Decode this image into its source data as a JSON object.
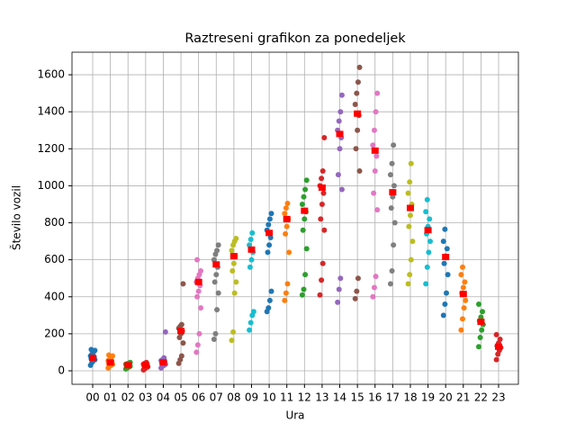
{
  "chart_data": {
    "type": "strip",
    "title": "Raztreseni grafikon za ponedeljek",
    "xlabel": "Ura",
    "ylabel": "Število vozil",
    "categories": [
      "00",
      "01",
      "02",
      "03",
      "04",
      "05",
      "06",
      "07",
      "08",
      "09",
      "10",
      "11",
      "12",
      "13",
      "14",
      "15",
      "16",
      "17",
      "18",
      "19",
      "20",
      "21",
      "22",
      "23"
    ],
    "groups": [
      {
        "color": "#1f77b4",
        "values": [
          30,
          45,
          55,
          60,
          65,
          70,
          75,
          80,
          90,
          100,
          110,
          115
        ]
      },
      {
        "color": "#ff7f0e",
        "values": [
          15,
          25,
          30,
          35,
          40,
          45,
          50,
          55,
          60,
          70,
          80,
          85
        ]
      },
      {
        "color": "#2ca02c",
        "values": [
          10,
          15,
          20,
          25,
          28,
          30,
          32,
          35,
          38,
          40,
          45
        ]
      },
      {
        "color": "#d62728",
        "values": [
          5,
          12,
          18,
          22,
          26,
          30,
          33,
          36,
          40,
          45
        ]
      },
      {
        "color": "#9467bd",
        "values": [
          15,
          25,
          30,
          35,
          40,
          45,
          50,
          55,
          60,
          70,
          210
        ]
      },
      {
        "color": "#8c564b",
        "values": [
          40,
          60,
          80,
          150,
          180,
          200,
          215,
          230,
          240,
          250,
          470
        ]
      },
      {
        "color": "#e377c2",
        "values": [
          100,
          140,
          200,
          340,
          400,
          430,
          460,
          480,
          500,
          520,
          540,
          600
        ]
      },
      {
        "color": "#7f7f7f",
        "values": [
          170,
          200,
          330,
          420,
          480,
          520,
          560,
          600,
          630,
          650,
          680
        ]
      },
      {
        "color": "#bcbd22",
        "values": [
          165,
          210,
          420,
          480,
          540,
          580,
          620,
          650,
          680,
          700,
          715
        ]
      },
      {
        "color": "#17becf",
        "values": [
          220,
          260,
          300,
          320,
          560,
          600,
          640,
          680,
          710,
          745
        ]
      },
      {
        "color": "#1f77b4",
        "values": [
          320,
          340,
          380,
          430,
          640,
          680,
          720,
          760,
          790,
          820,
          850
        ]
      },
      {
        "color": "#ff7f0e",
        "values": [
          380,
          420,
          470,
          640,
          740,
          780,
          820,
          850,
          880,
          905
        ]
      },
      {
        "color": "#2ca02c",
        "values": [
          410,
          440,
          520,
          660,
          760,
          820,
          860,
          900,
          940,
          980,
          1030
        ]
      },
      {
        "color": "#d62728",
        "values": [
          410,
          490,
          580,
          760,
          820,
          900,
          960,
          1000,
          1040,
          1080,
          1260
        ]
      },
      {
        "color": "#9467bd",
        "values": [
          370,
          440,
          500,
          980,
          1060,
          1200,
          1260,
          1300,
          1350,
          1400,
          1490
        ]
      },
      {
        "color": "#8c564b",
        "values": [
          390,
          430,
          500,
          1080,
          1200,
          1300,
          1380,
          1440,
          1500,
          1560,
          1640
        ]
      },
      {
        "color": "#e377c2",
        "values": [
          400,
          450,
          510,
          870,
          960,
          1080,
          1160,
          1220,
          1300,
          1400,
          1500
        ]
      },
      {
        "color": "#7f7f7f",
        "values": [
          470,
          540,
          680,
          800,
          880,
          940,
          1000,
          1060,
          1120,
          1220
        ]
      },
      {
        "color": "#bcbd22",
        "values": [
          470,
          520,
          600,
          700,
          780,
          840,
          900,
          960,
          1020,
          1120
        ]
      },
      {
        "color": "#17becf",
        "values": [
          470,
          560,
          640,
          700,
          740,
          780,
          820,
          860,
          925
        ]
      },
      {
        "color": "#1f77b4",
        "values": [
          300,
          360,
          420,
          520,
          580,
          620,
          660,
          700,
          765
        ]
      },
      {
        "color": "#ff7f0e",
        "values": [
          220,
          280,
          340,
          380,
          420,
          450,
          480,
          520,
          560
        ]
      },
      {
        "color": "#2ca02c",
        "values": [
          130,
          180,
          220,
          250,
          270,
          290,
          320,
          360
        ]
      },
      {
        "color": "#d62728",
        "values": [
          60,
          90,
          110,
          125,
          135,
          150,
          170,
          195
        ]
      }
    ],
    "means": [
      70,
      45,
      30,
      30,
      45,
      215,
      480,
      575,
      620,
      655,
      745,
      820,
      865,
      990,
      1280,
      1390,
      1190,
      965,
      880,
      760,
      615,
      415,
      265,
      130
    ],
    "mean_color": "#ff0000",
    "ylim": [
      -73,
      1722
    ],
    "yticks": [
      0,
      200,
      400,
      600,
      800,
      1000,
      1200,
      1400,
      1600
    ],
    "grid": true
  }
}
